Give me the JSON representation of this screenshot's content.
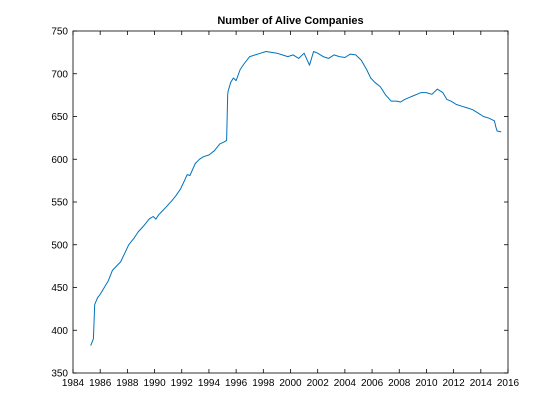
{
  "chart_data": {
    "type": "line",
    "title": "Number of Alive Companies",
    "xlabel": "",
    "ylabel": "",
    "xlim": [
      1984,
      2016
    ],
    "ylim": [
      350,
      750
    ],
    "xticks": [
      1984,
      1986,
      1988,
      1990,
      1992,
      1994,
      1996,
      1998,
      2000,
      2002,
      2004,
      2006,
      2008,
      2010,
      2012,
      2014,
      2016
    ],
    "yticks": [
      350,
      400,
      450,
      500,
      550,
      600,
      650,
      700,
      750
    ],
    "grid": false,
    "series_color": "#0072bd",
    "series": [
      {
        "x": [
          1985.3,
          1985.5,
          1985.6,
          1985.8,
          1986.0,
          1986.3,
          1986.6,
          1986.9,
          1987.2,
          1987.5,
          1987.8,
          1988.1,
          1988.5,
          1988.8,
          1989.2,
          1989.6,
          1989.9,
          1990.1,
          1990.3,
          1990.6,
          1990.9,
          1991.3,
          1991.6,
          1991.9,
          1992.2,
          1992.4,
          1992.6,
          1992.8,
          1993.0,
          1993.3,
          1993.6,
          1994.0,
          1994.4,
          1994.8,
          1995.1,
          1995.3,
          1995.38,
          1995.42,
          1995.6,
          1995.8,
          1996.0,
          1996.3,
          1996.6,
          1997.0,
          1997.4,
          1997.8,
          1998.2,
          1998.6,
          1999.0,
          1999.4,
          1999.8,
          2000.2,
          2000.6,
          2001.0,
          2001.4,
          2001.7,
          2002.0,
          2002.4,
          2002.8,
          2003.2,
          2003.6,
          2004.0,
          2004.4,
          2004.8,
          2005.2,
          2005.6,
          2005.9,
          2006.2,
          2006.6,
          2007.0,
          2007.4,
          2007.8,
          2008.1,
          2008.4,
          2008.7,
          2009.0,
          2009.3,
          2009.6,
          2010.0,
          2010.4,
          2010.8,
          2011.2,
          2011.5,
          2011.8,
          2012.2,
          2012.6,
          2013.0,
          2013.4,
          2013.8,
          2014.2,
          2014.6,
          2015.0,
          2015.1,
          2015.2,
          2015.5
        ],
        "y": [
          382,
          390,
          430,
          438,
          442,
          450,
          458,
          470,
          475,
          480,
          490,
          500,
          508,
          515,
          522,
          530,
          533,
          530,
          535,
          540,
          545,
          552,
          558,
          565,
          575,
          582,
          581,
          588,
          595,
          600,
          603,
          605,
          610,
          618,
          620,
          622,
          676,
          680,
          690,
          695,
          692,
          705,
          712,
          720,
          722,
          724,
          726,
          725,
          724,
          722,
          720,
          722,
          718,
          724,
          710,
          726,
          724,
          720,
          718,
          722,
          720,
          719,
          723,
          722,
          716,
          705,
          695,
          690,
          685,
          675,
          668,
          668,
          667,
          670,
          672,
          674,
          676,
          678,
          678,
          676,
          682,
          678,
          670,
          668,
          664,
          662,
          660,
          658,
          654,
          650,
          648,
          645,
          638,
          633,
          632
        ]
      }
    ]
  }
}
